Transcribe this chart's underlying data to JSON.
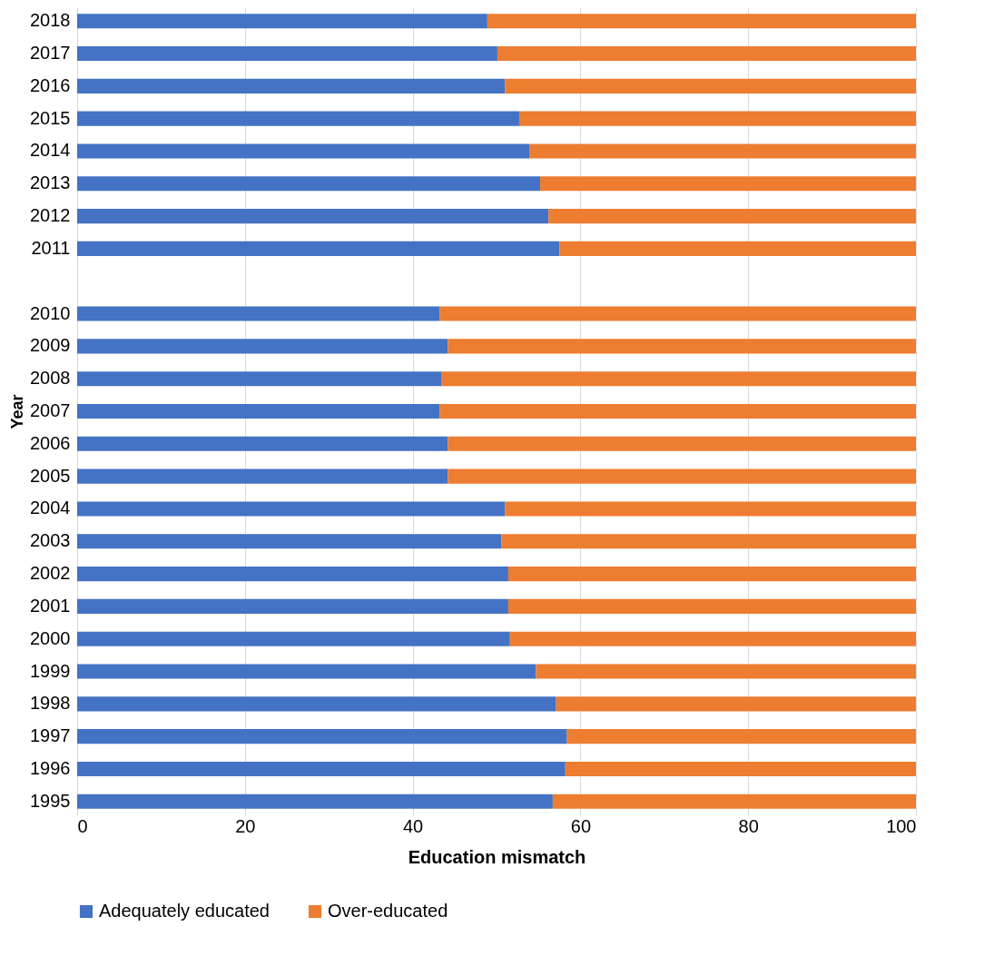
{
  "chart_data": {
    "type": "bar",
    "orientation": "horizontal",
    "stacked": true,
    "xlabel": "Education mismatch",
    "ylabel": "Year",
    "categories": [
      "2018",
      "2017",
      "2016",
      "2015",
      "2014",
      "2013",
      "2012",
      "2011",
      null,
      "2010",
      "2009",
      "2008",
      "2007",
      "2006",
      "2005",
      "2004",
      "2003",
      "2002",
      "2001",
      "2000",
      "1999",
      "1998",
      "1997",
      "1996",
      "1995"
    ],
    "series": [
      {
        "name": "Adequately educated",
        "color": "#4472c4",
        "values": [
          48.9,
          50.1,
          51.0,
          52.7,
          53.9,
          55.2,
          56.2,
          57.5,
          null,
          43.2,
          44.2,
          43.4,
          43.2,
          44.2,
          44.2,
          51.0,
          50.6,
          51.4,
          51.4,
          51.6,
          54.7,
          57.1,
          58.4,
          58.2,
          56.7
        ]
      },
      {
        "name": "Over-educated",
        "color": "#ed7d31",
        "values": [
          51.1,
          49.9,
          49.0,
          47.3,
          46.1,
          44.8,
          43.8,
          42.5,
          null,
          56.8,
          55.8,
          56.6,
          56.8,
          55.8,
          55.8,
          49.0,
          49.4,
          48.6,
          48.6,
          48.4,
          45.3,
          42.9,
          41.6,
          41.8,
          43.3
        ]
      }
    ],
    "xlim": [
      0,
      100
    ],
    "xticks": [
      0,
      20,
      40,
      60,
      80,
      100
    ],
    "grid": "x",
    "legend": "bottom"
  }
}
